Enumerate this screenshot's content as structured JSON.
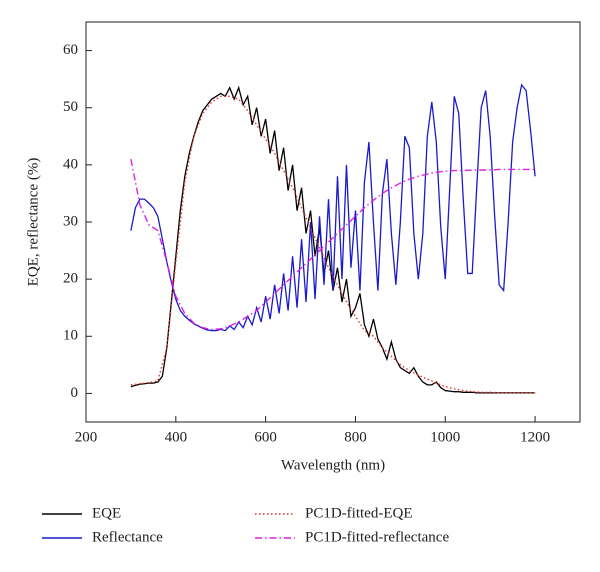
{
  "chart_data": {
    "type": "line",
    "xlabel": "Wavelength (nm)",
    "ylabel": "EQE, reflectance (%)",
    "xlim": [
      200,
      1300
    ],
    "ylim": [
      -5,
      65
    ],
    "xticks": [
      200,
      400,
      600,
      800,
      1000,
      1200
    ],
    "yticks": [
      0,
      10,
      20,
      30,
      40,
      50,
      60
    ],
    "series": [
      {
        "name": "EQE",
        "color": "#000000",
        "style": "solid",
        "x": [
          300,
          310,
          320,
          330,
          340,
          350,
          360,
          370,
          380,
          390,
          400,
          410,
          420,
          430,
          440,
          450,
          460,
          470,
          480,
          490,
          500,
          510,
          520,
          530,
          540,
          550,
          560,
          570,
          580,
          590,
          600,
          610,
          620,
          630,
          640,
          650,
          660,
          670,
          680,
          690,
          700,
          710,
          720,
          730,
          740,
          750,
          760,
          770,
          780,
          790,
          800,
          810,
          820,
          830,
          840,
          850,
          860,
          870,
          880,
          890,
          900,
          910,
          920,
          930,
          940,
          950,
          960,
          970,
          980,
          990,
          1000,
          1010,
          1020,
          1030,
          1040,
          1050,
          1060,
          1070,
          1080,
          1090,
          1100,
          1110,
          1120,
          1130,
          1140,
          1150,
          1160,
          1170,
          1180,
          1190,
          1200
        ],
        "values": [
          1.2,
          1.4,
          1.6,
          1.7,
          1.8,
          1.8,
          2,
          3,
          8,
          16,
          24,
          32,
          38,
          42,
          45,
          47.5,
          49.5,
          50.5,
          51.5,
          52,
          52.5,
          52,
          53.5,
          51.5,
          53.5,
          50.5,
          52,
          47,
          50,
          45,
          48,
          42,
          46,
          39,
          43,
          35.5,
          40,
          32,
          36,
          28,
          32,
          24,
          29,
          21,
          25,
          18,
          22,
          16,
          20,
          13.5,
          15,
          17.5,
          12,
          10,
          13,
          9.5,
          8,
          6,
          9,
          6,
          4.5,
          4,
          3.5,
          4.5,
          3,
          2,
          1.5,
          1.5,
          2,
          1,
          0.5,
          0.4,
          0.3,
          0.3,
          0.2,
          0.2,
          0.2,
          0.1,
          0.1,
          0.1,
          0.1,
          0.1,
          0.1,
          0.1,
          0.1,
          0.1,
          0.1,
          0.1,
          0.1,
          0.1,
          0.1
        ]
      },
      {
        "name": "Reflectance",
        "color": "#1a1acc",
        "style": "solid",
        "x": [
          300,
          310,
          320,
          330,
          340,
          350,
          360,
          370,
          380,
          390,
          400,
          410,
          420,
          430,
          440,
          450,
          460,
          470,
          480,
          490,
          500,
          510,
          520,
          530,
          540,
          550,
          560,
          570,
          580,
          590,
          600,
          610,
          620,
          630,
          640,
          650,
          660,
          670,
          680,
          690,
          700,
          710,
          720,
          730,
          740,
          750,
          760,
          770,
          780,
          790,
          800,
          810,
          820,
          830,
          840,
          850,
          860,
          870,
          880,
          890,
          900,
          910,
          920,
          930,
          940,
          950,
          960,
          970,
          980,
          990,
          1000,
          1010,
          1020,
          1030,
          1040,
          1050,
          1060,
          1070,
          1080,
          1090,
          1100,
          1110,
          1120,
          1130,
          1140,
          1150,
          1160,
          1170,
          1180,
          1190,
          1200
        ],
        "values": [
          28.5,
          32.5,
          34,
          34,
          33.3,
          32.5,
          31,
          27,
          23,
          19.5,
          16.5,
          14.5,
          13.5,
          12.8,
          12.2,
          11.8,
          11.4,
          11.1,
          11,
          11,
          11.2,
          11,
          11.8,
          11.2,
          12.5,
          11.5,
          13.5,
          12,
          15,
          12.5,
          17,
          13,
          19,
          14,
          21,
          14.5,
          24,
          15,
          27,
          16,
          30,
          16.5,
          31,
          19,
          34,
          18,
          38,
          20,
          40,
          22,
          32,
          18,
          37,
          44,
          30,
          18,
          35,
          41,
          28,
          19,
          30,
          45,
          43,
          28,
          20,
          28,
          45,
          51,
          44,
          29,
          20,
          36,
          52,
          49,
          34,
          21,
          21,
          36,
          50,
          53,
          45,
          31,
          19,
          18,
          30,
          44,
          50,
          54,
          53,
          46,
          38
        ]
      },
      {
        "name": "PC1D-fitted-EQE",
        "color": "#e8302a",
        "style": "dotted",
        "x": [
          300,
          320,
          340,
          360,
          380,
          400,
          420,
          440,
          460,
          480,
          500,
          520,
          540,
          560,
          580,
          600,
          620,
          640,
          660,
          680,
          700,
          720,
          740,
          760,
          780,
          800,
          820,
          840,
          860,
          880,
          900,
          920,
          940,
          960,
          980,
          1000,
          1020,
          1040,
          1060,
          1080,
          1100,
          1120,
          1140,
          1160,
          1180,
          1200
        ],
        "values": [
          1.5,
          1.7,
          1.9,
          2.2,
          8,
          23,
          37,
          45,
          49,
          51,
          52,
          52,
          51.5,
          49.5,
          47,
          44.5,
          42,
          39,
          36,
          32.5,
          29,
          25.5,
          22,
          19,
          16,
          13.5,
          11,
          10,
          8,
          6.5,
          5,
          4,
          3.2,
          2.5,
          1.8,
          1.2,
          0.8,
          0.5,
          0.3,
          0.2,
          0.2,
          0.1,
          0.1,
          0.1,
          0.1,
          0.1
        ]
      },
      {
        "name": "PC1D-fitted-reflectance",
        "color": "#e020e0",
        "style": "dashdot",
        "x": [
          300,
          320,
          340,
          360,
          380,
          400,
          420,
          440,
          460,
          480,
          500,
          520,
          540,
          560,
          580,
          600,
          620,
          640,
          660,
          680,
          700,
          720,
          740,
          760,
          780,
          800,
          820,
          840,
          860,
          880,
          900,
          920,
          940,
          960,
          980,
          1000,
          1020,
          1040,
          1060,
          1080,
          1100,
          1120,
          1140,
          1160,
          1180,
          1200
        ],
        "values": [
          41,
          33,
          29.5,
          28.5,
          23,
          17,
          14,
          12.3,
          11.5,
          11.2,
          11.3,
          11.8,
          12.5,
          13.5,
          14.5,
          16,
          17.5,
          19,
          20.5,
          22,
          23.5,
          25,
          26.5,
          28,
          29.5,
          31,
          32.5,
          33.8,
          35,
          36,
          36.8,
          37.5,
          38,
          38.4,
          38.7,
          38.9,
          39,
          39,
          39.1,
          39.1,
          39.1,
          39.2,
          39.2,
          39.2,
          39.2,
          39.2
        ]
      }
    ]
  }
}
